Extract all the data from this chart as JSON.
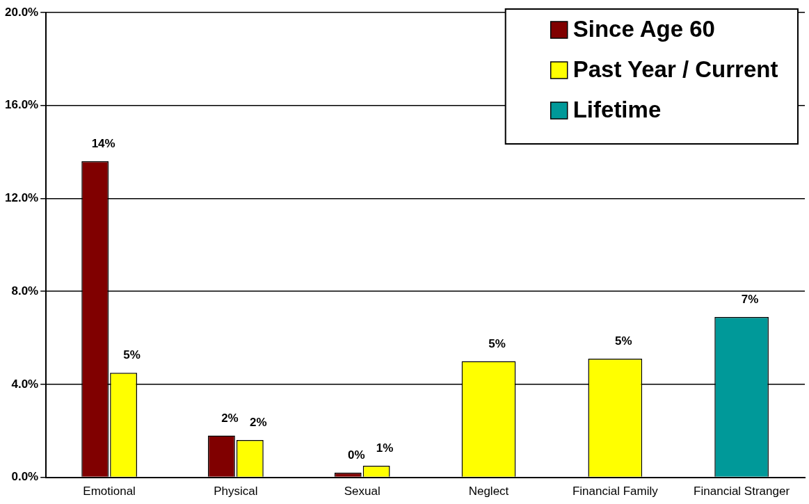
{
  "chart_data": {
    "type": "bar",
    "categories": [
      "Emotional",
      "Physical",
      "Sexual",
      "Neglect",
      "Financial Family",
      "Financial Stranger"
    ],
    "series": [
      {
        "name": "Since Age 60",
        "color": "#800000",
        "values": [
          13.6,
          1.8,
          0.2,
          null,
          null,
          null
        ],
        "value_labels": [
          "14%",
          "2%",
          "0%",
          null,
          null,
          null
        ]
      },
      {
        "name": "Past Year / Current",
        "color": "#ffff00",
        "values": [
          4.5,
          1.6,
          0.5,
          5.0,
          5.1,
          null
        ],
        "value_labels": [
          "5%",
          "2%",
          "1%",
          "5%",
          "5%",
          null
        ]
      },
      {
        "name": "Lifetime",
        "color": "#009999",
        "values": [
          null,
          null,
          null,
          null,
          null,
          6.9
        ],
        "value_labels": [
          null,
          null,
          null,
          null,
          null,
          "7%"
        ]
      }
    ],
    "ylim": [
      0,
      20
    ],
    "yticks": [
      {
        "value": 0,
        "label": "0.0%"
      },
      {
        "value": 4,
        "label": "4.0%"
      },
      {
        "value": 8,
        "label": "8.0%"
      },
      {
        "value": 12,
        "label": "12.0%"
      },
      {
        "value": 16,
        "label": "16.0%"
      },
      {
        "value": 20,
        "label": "20.0%"
      }
    ],
    "grid": "y",
    "legend": "top right"
  }
}
